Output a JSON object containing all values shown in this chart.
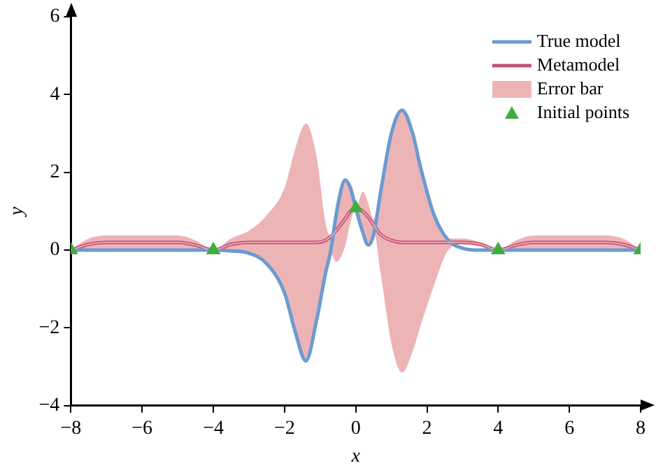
{
  "chart_data": {
    "type": "line",
    "xlabel": "x",
    "ylabel": "y",
    "x": [
      -8,
      -7.5,
      -7,
      -6,
      -5,
      -4.5,
      -4,
      -3.5,
      -3,
      -2.5,
      -2,
      -1.7,
      -1.4,
      -1.1,
      -0.85,
      -0.7,
      -0.55,
      -0.3,
      -0.15,
      0,
      0.2,
      0.35,
      0.5,
      0.7,
      1,
      1.3,
      1.6,
      1.8,
      2.2,
      2.6,
      3,
      3.5,
      4,
      4.5,
      5,
      6,
      7,
      7.5,
      8
    ],
    "series": [
      {
        "name": "True model",
        "type": "line",
        "color": "#6b9bd1",
        "values": [
          0,
          0,
          0,
          0,
          0,
          0,
          0,
          -0.02,
          -0.08,
          -0.35,
          -1.1,
          -2.1,
          -2.85,
          -1.8,
          -0.6,
          0,
          0.9,
          1.8,
          1.6,
          1.08,
          0.45,
          0.13,
          0.4,
          1.5,
          3.0,
          3.6,
          3.0,
          2.2,
          0.9,
          0.25,
          0.05,
          0,
          0,
          0,
          0,
          0,
          0,
          0,
          0
        ]
      },
      {
        "name": "Metamodel",
        "type": "line",
        "color": "#c24f7c",
        "values": [
          0,
          0.15,
          0.2,
          0.2,
          0.2,
          0.13,
          0,
          0.15,
          0.2,
          0.2,
          0.2,
          0.2,
          0.2,
          0.2,
          0.25,
          0.35,
          0.5,
          0.8,
          1.0,
          1.08,
          1.0,
          0.85,
          0.65,
          0.4,
          0.25,
          0.2,
          0.2,
          0.2,
          0.2,
          0.2,
          0.2,
          0.15,
          0,
          0.13,
          0.2,
          0.2,
          0.2,
          0.15,
          0
        ]
      },
      {
        "name": "Error bar",
        "type": "line",
        "color": "#e9a3a6",
        "values": [
          0,
          0.15,
          0.2,
          0.2,
          0.2,
          0.13,
          0,
          0.15,
          0.2,
          0.2,
          0.2,
          0.2,
          0.2,
          0.2,
          0.25,
          0.35,
          0.5,
          0.8,
          1.0,
          1.08,
          1.0,
          0.85,
          0.65,
          0.4,
          0.25,
          0.2,
          0.2,
          0.2,
          0.2,
          0.2,
          0.2,
          0.15,
          0,
          0.13,
          0.2,
          0.2,
          0.2,
          0.15,
          0
        ],
        "lower": [
          0,
          0,
          0,
          0,
          0,
          0,
          0,
          -0.02,
          -0.08,
          -0.35,
          -1.1,
          -2.1,
          -2.85,
          -1.8,
          -0.6,
          -0.1,
          -0.3,
          0.1,
          0.7,
          1.08,
          0.5,
          0.13,
          0.5,
          -0.6,
          -2.4,
          -3.15,
          -2.6,
          -2.0,
          -0.9,
          0,
          0.15,
          0.1,
          0,
          0,
          0,
          0,
          0,
          0,
          0
        ],
        "upper": [
          0,
          0.3,
          0.38,
          0.38,
          0.38,
          0.25,
          0,
          0.3,
          0.5,
          0.9,
          1.6,
          2.6,
          3.25,
          2.4,
          0.7,
          0.35,
          1.2,
          1.8,
          1.6,
          1.08,
          1.5,
          1.2,
          0.8,
          1.5,
          3.0,
          3.6,
          3.0,
          2.2,
          0.9,
          0.3,
          0.3,
          0.2,
          0,
          0.25,
          0.38,
          0.38,
          0.38,
          0.3,
          0
        ]
      },
      {
        "name": "Initial points",
        "type": "scatter",
        "color": "#3fae3f",
        "marker": "triangle",
        "x": [
          -8,
          -4,
          0,
          4,
          8
        ],
        "values": [
          0,
          0,
          1.08,
          0,
          0
        ]
      }
    ],
    "xlim": [
      -8,
      8
    ],
    "xticks": [
      -8,
      -6,
      -4,
      -2,
      0,
      2,
      4,
      6,
      8
    ],
    "ylim": [
      -4,
      6
    ],
    "yticks": [
      -4,
      -2,
      0,
      2,
      4,
      6
    ],
    "grid": false,
    "legend": "top right"
  }
}
